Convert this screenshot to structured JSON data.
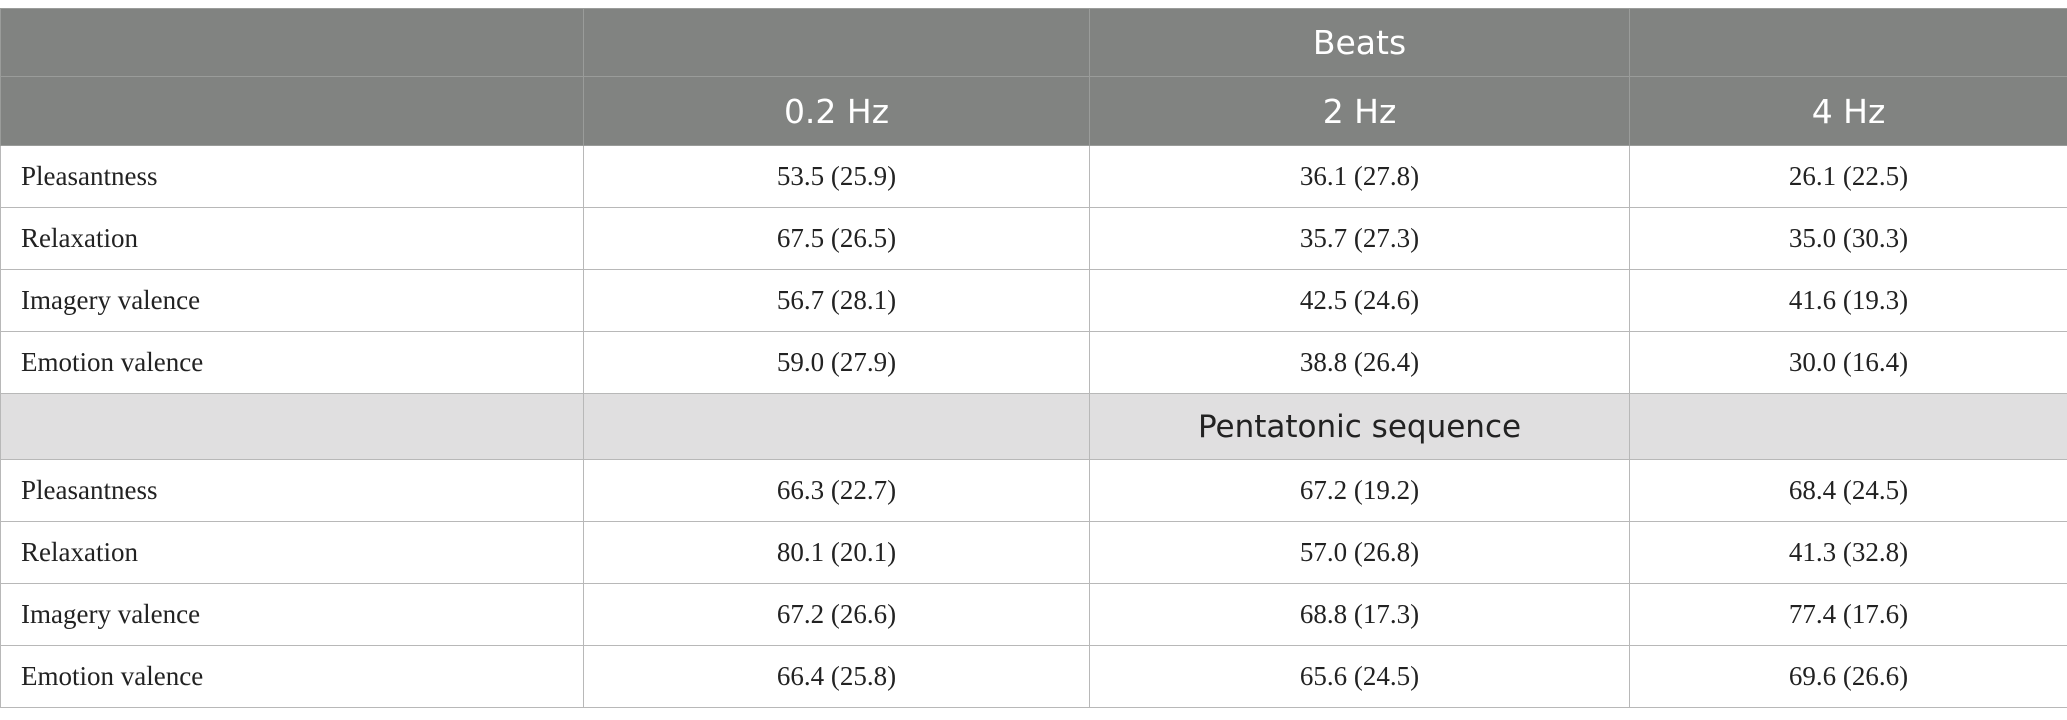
{
  "header": {
    "group_label": "Beats",
    "columns": [
      "0.2 Hz",
      "2 Hz",
      "4 Hz"
    ]
  },
  "beats_rows": [
    {
      "label": "Pleasantness",
      "values": [
        "53.5 (25.9)",
        "36.1 (27.8)",
        "26.1 (22.5)"
      ]
    },
    {
      "label": "Relaxation",
      "values": [
        "67.5 (26.5)",
        "35.7 (27.3)",
        "35.0 (30.3)"
      ]
    },
    {
      "label": "Imagery valence",
      "values": [
        "56.7 (28.1)",
        "42.5 (24.6)",
        "41.6 (19.3)"
      ]
    },
    {
      "label": "Emotion valence",
      "values": [
        "59.0 (27.9)",
        "38.8 (26.4)",
        "30.0 (16.4)"
      ]
    }
  ],
  "section2_label": "Pentatonic sequence",
  "pentatonic_rows": [
    {
      "label": "Pleasantness",
      "values": [
        "66.3 (22.7)",
        "67.2 (19.2)",
        "68.4 (24.5)"
      ]
    },
    {
      "label": "Relaxation",
      "values": [
        "80.1 (20.1)",
        "57.0 (26.8)",
        "41.3 (32.8)"
      ]
    },
    {
      "label": "Imagery valence",
      "values": [
        "67.2 (26.6)",
        "68.8 (17.3)",
        "77.4 (17.6)"
      ]
    },
    {
      "label": "Emotion valence",
      "values": [
        "66.4 (25.8)",
        "65.6 (24.5)",
        "69.6 (26.6)"
      ]
    }
  ]
}
